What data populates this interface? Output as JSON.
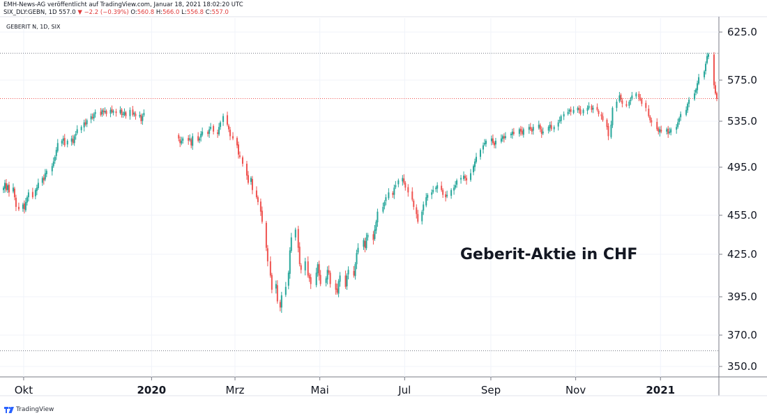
{
  "header": {
    "attribution": "EMH-News-AG veröffentlicht auf TradingView.com, Januar 18, 2021 18:02:20 UTC",
    "symbol_line_prefix": "SIX_DLY:GEBN, 1D",
    "last": "557.0",
    "change_arrow": "▼",
    "change": "−2.2 (−0.39%)",
    "o_label": "O:",
    "o_value": "560.8",
    "h_label": "H:",
    "h_value": "566.0",
    "l_label": "L:",
    "l_value": "556.8",
    "c_label": "C:",
    "c_value": "557.0"
  },
  "footer": {
    "brand": "TradingView"
  },
  "colors": {
    "up": "#26a69a",
    "down": "#ef5350",
    "grid": "#f0f3fa",
    "axis": "#131722"
  },
  "chart_data": {
    "type": "candlestick",
    "legend": "GEBERIT N, 1D, SIX",
    "annotation": "Geberit-Aktie in CHF",
    "y_ticks": [
      "625.0",
      "575.0",
      "535.0",
      "495.0",
      "455.0",
      "425.0",
      "395.0",
      "370.0",
      "350.0"
    ],
    "ylim": [
      345,
      630
    ],
    "x_ticks": [
      {
        "label": "Okt",
        "bold": false,
        "date": "2019-10-01"
      },
      {
        "label": "2020",
        "bold": true,
        "date": "2020-01-01"
      },
      {
        "label": "Mrz",
        "bold": false,
        "date": "2020-03-01"
      },
      {
        "label": "Mai",
        "bold": false,
        "date": "2020-05-01"
      },
      {
        "label": "Jul",
        "bold": false,
        "date": "2020-07-01"
      },
      {
        "label": "Sep",
        "bold": false,
        "date": "2020-09-01"
      },
      {
        "label": "Nov",
        "bold": false,
        "date": "2020-11-01"
      },
      {
        "label": "2021",
        "bold": true,
        "date": "2021-01-01"
      }
    ],
    "x_range": [
      "2019-09-16",
      "2021-02-12"
    ],
    "reference_lines": [
      {
        "value": 603,
        "color": "#787b86"
      },
      {
        "value": 557,
        "color": "#ef5350"
      },
      {
        "value": 360,
        "color": "#787b86"
      }
    ],
    "closes": [
      [
        478,
        482,
        476,
        480,
        474,
        478,
        470,
        462,
        460,
        464,
        460,
        466,
        470,
        474,
        470,
        476,
        478,
        482,
        486,
        484,
        490,
        492,
        496,
        500,
        504,
        510,
        516,
        518,
        520,
        514,
        518,
        520,
        516,
        522,
        524,
        528,
        530,
        534,
        532,
        536,
        540,
        538,
        542,
        544,
        541,
        546,
        544,
        545,
        542,
        546,
        544,
        545,
        543,
        546,
        541,
        542,
        544,
        540,
        546,
        541,
        543,
        540,
        541,
        535,
        540,
        543
      ],
      [
        520,
        516,
        518,
        520,
        518,
        520,
        514,
        522,
        518,
        520,
        524,
        526,
        524,
        528,
        530,
        526,
        524,
        530,
        534,
        540,
        532,
        528,
        522,
        520,
        514,
        506,
        504,
        498,
        488,
        482,
        486,
        476,
        470,
        466,
        458,
        450,
        430,
        420,
        410,
        400,
        404,
        392,
        388,
        396,
        402,
        412,
        428,
        438,
        444,
        430,
        418,
        414,
        420,
        410,
        408,
        404,
        412,
        418,
        410,
        404,
        408,
        414,
        412,
        404,
        400,
        398,
        406,
        410,
        402,
        410,
        414,
        410,
        418,
        426,
        430,
        436,
        430,
        438,
        440,
        436,
        444,
        450,
        458,
        462,
        466,
        470,
        474,
        472,
        478,
        480,
        484,
        486,
        482,
        478,
        474,
        468,
        462,
        456,
        450,
        458,
        464,
        470,
        472,
        474,
        476,
        478,
        480,
        476,
        472,
        470,
        472,
        476,
        478,
        480,
        484,
        486,
        488,
        486,
        484,
        490,
        496,
        500,
        504,
        510,
        514,
        516,
        518,
        520,
        516,
        514,
        518,
        520,
        522,
        520,
        522,
        524,
        526,
        524,
        528,
        526,
        524,
        528,
        530,
        528,
        526,
        530,
        532,
        528,
        524,
        526,
        530,
        532,
        528,
        530,
        534,
        536,
        540,
        542,
        544,
        546,
        544,
        546,
        548,
        546,
        542,
        546,
        548,
        550,
        546,
        548,
        546,
        542,
        540,
        536,
        530,
        522,
        532,
        548,
        554,
        560,
        556,
        552,
        550,
        554,
        556,
        560,
        562,
        558,
        556,
        552,
        548,
        540,
        536,
        534,
        528,
        526,
        528,
        526,
        528,
        524,
        526,
        528,
        530,
        534,
        538,
        542,
        546,
        552,
        556,
        562,
        566,
        572,
        578,
        584,
        592,
        600,
        602,
        570,
        562,
        557
      ]
    ]
  }
}
